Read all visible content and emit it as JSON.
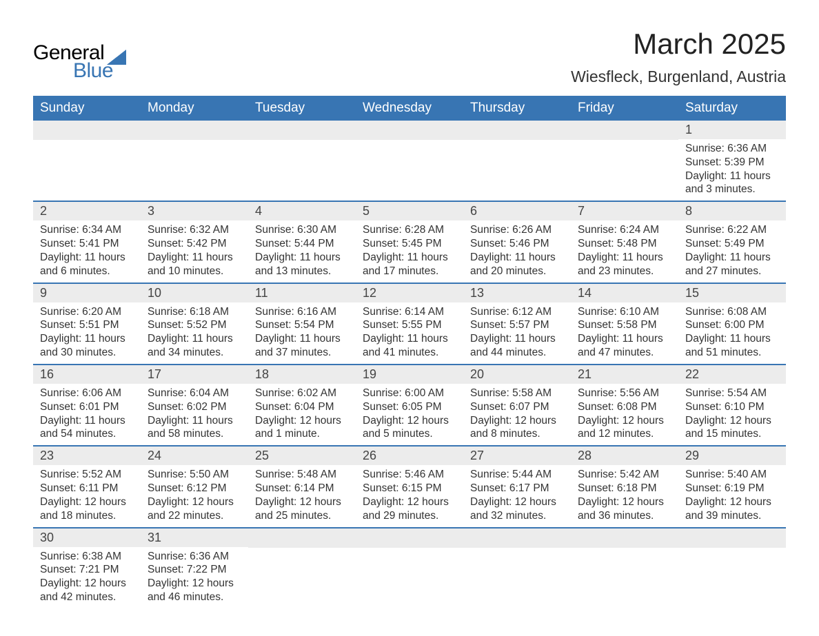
{
  "logo": {
    "line1": "General",
    "line2": "Blue",
    "accent_color": "#3875b3"
  },
  "title": "March 2025",
  "location": "Wiesfleck, Burgenland, Austria",
  "colors": {
    "header_bg": "#3875b3",
    "header_text": "#ffffff",
    "daynum_bg": "#ececec",
    "border": "#3875b3",
    "body_text": "#333333"
  },
  "fonts": {
    "title_size_pt": 32,
    "location_size_pt": 17,
    "header_size_pt": 14,
    "body_size_pt": 11.5
  },
  "columns": [
    "Sunday",
    "Monday",
    "Tuesday",
    "Wednesday",
    "Thursday",
    "Friday",
    "Saturday"
  ],
  "weeks": [
    [
      null,
      null,
      null,
      null,
      null,
      null,
      {
        "n": "1",
        "sunrise": "6:36 AM",
        "sunset": "5:39 PM",
        "daylight": "11 hours and 3 minutes."
      }
    ],
    [
      {
        "n": "2",
        "sunrise": "6:34 AM",
        "sunset": "5:41 PM",
        "daylight": "11 hours and 6 minutes."
      },
      {
        "n": "3",
        "sunrise": "6:32 AM",
        "sunset": "5:42 PM",
        "daylight": "11 hours and 10 minutes."
      },
      {
        "n": "4",
        "sunrise": "6:30 AM",
        "sunset": "5:44 PM",
        "daylight": "11 hours and 13 minutes."
      },
      {
        "n": "5",
        "sunrise": "6:28 AM",
        "sunset": "5:45 PM",
        "daylight": "11 hours and 17 minutes."
      },
      {
        "n": "6",
        "sunrise": "6:26 AM",
        "sunset": "5:46 PM",
        "daylight": "11 hours and 20 minutes."
      },
      {
        "n": "7",
        "sunrise": "6:24 AM",
        "sunset": "5:48 PM",
        "daylight": "11 hours and 23 minutes."
      },
      {
        "n": "8",
        "sunrise": "6:22 AM",
        "sunset": "5:49 PM",
        "daylight": "11 hours and 27 minutes."
      }
    ],
    [
      {
        "n": "9",
        "sunrise": "6:20 AM",
        "sunset": "5:51 PM",
        "daylight": "11 hours and 30 minutes."
      },
      {
        "n": "10",
        "sunrise": "6:18 AM",
        "sunset": "5:52 PM",
        "daylight": "11 hours and 34 minutes."
      },
      {
        "n": "11",
        "sunrise": "6:16 AM",
        "sunset": "5:54 PM",
        "daylight": "11 hours and 37 minutes."
      },
      {
        "n": "12",
        "sunrise": "6:14 AM",
        "sunset": "5:55 PM",
        "daylight": "11 hours and 41 minutes."
      },
      {
        "n": "13",
        "sunrise": "6:12 AM",
        "sunset": "5:57 PM",
        "daylight": "11 hours and 44 minutes."
      },
      {
        "n": "14",
        "sunrise": "6:10 AM",
        "sunset": "5:58 PM",
        "daylight": "11 hours and 47 minutes."
      },
      {
        "n": "15",
        "sunrise": "6:08 AM",
        "sunset": "6:00 PM",
        "daylight": "11 hours and 51 minutes."
      }
    ],
    [
      {
        "n": "16",
        "sunrise": "6:06 AM",
        "sunset": "6:01 PM",
        "daylight": "11 hours and 54 minutes."
      },
      {
        "n": "17",
        "sunrise": "6:04 AM",
        "sunset": "6:02 PM",
        "daylight": "11 hours and 58 minutes."
      },
      {
        "n": "18",
        "sunrise": "6:02 AM",
        "sunset": "6:04 PM",
        "daylight": "12 hours and 1 minute."
      },
      {
        "n": "19",
        "sunrise": "6:00 AM",
        "sunset": "6:05 PM",
        "daylight": "12 hours and 5 minutes."
      },
      {
        "n": "20",
        "sunrise": "5:58 AM",
        "sunset": "6:07 PM",
        "daylight": "12 hours and 8 minutes."
      },
      {
        "n": "21",
        "sunrise": "5:56 AM",
        "sunset": "6:08 PM",
        "daylight": "12 hours and 12 minutes."
      },
      {
        "n": "22",
        "sunrise": "5:54 AM",
        "sunset": "6:10 PM",
        "daylight": "12 hours and 15 minutes."
      }
    ],
    [
      {
        "n": "23",
        "sunrise": "5:52 AM",
        "sunset": "6:11 PM",
        "daylight": "12 hours and 18 minutes."
      },
      {
        "n": "24",
        "sunrise": "5:50 AM",
        "sunset": "6:12 PM",
        "daylight": "12 hours and 22 minutes."
      },
      {
        "n": "25",
        "sunrise": "5:48 AM",
        "sunset": "6:14 PM",
        "daylight": "12 hours and 25 minutes."
      },
      {
        "n": "26",
        "sunrise": "5:46 AM",
        "sunset": "6:15 PM",
        "daylight": "12 hours and 29 minutes."
      },
      {
        "n": "27",
        "sunrise": "5:44 AM",
        "sunset": "6:17 PM",
        "daylight": "12 hours and 32 minutes."
      },
      {
        "n": "28",
        "sunrise": "5:42 AM",
        "sunset": "6:18 PM",
        "daylight": "12 hours and 36 minutes."
      },
      {
        "n": "29",
        "sunrise": "5:40 AM",
        "sunset": "6:19 PM",
        "daylight": "12 hours and 39 minutes."
      }
    ],
    [
      {
        "n": "30",
        "sunrise": "6:38 AM",
        "sunset": "7:21 PM",
        "daylight": "12 hours and 42 minutes."
      },
      {
        "n": "31",
        "sunrise": "6:36 AM",
        "sunset": "7:22 PM",
        "daylight": "12 hours and 46 minutes."
      },
      null,
      null,
      null,
      null,
      null
    ]
  ],
  "labels": {
    "sunrise": "Sunrise:",
    "sunset": "Sunset:",
    "daylight": "Daylight:"
  }
}
